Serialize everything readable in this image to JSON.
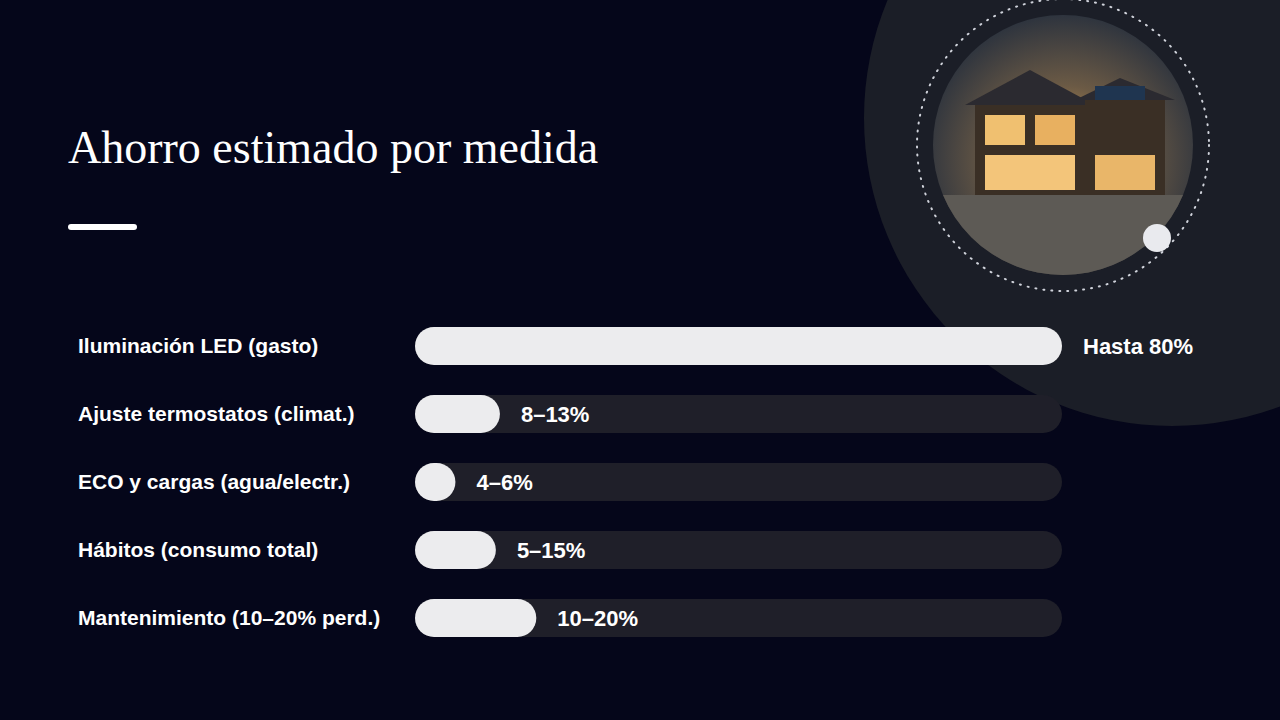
{
  "chart_data": {
    "type": "bar",
    "title": "Ahorro estimado por medida",
    "orientation": "horizontal",
    "categories": [
      "Iluminación LED (gasto)",
      "Ajuste termostatos (climat.)",
      "ECO y cargas (agua/electr.)",
      "Hábitos (consumo total)",
      "Mantenimiento (10–20% perd.)"
    ],
    "values": [
      80,
      10.5,
      5,
      10,
      15
    ],
    "value_labels": [
      "Hasta 80%",
      "8–13%",
      "4–6%",
      "5–15%",
      "10–20%"
    ],
    "color": "#ececee",
    "xlim": [
      0,
      80
    ],
    "data_labels": true,
    "tick_labels": "y"
  }
}
